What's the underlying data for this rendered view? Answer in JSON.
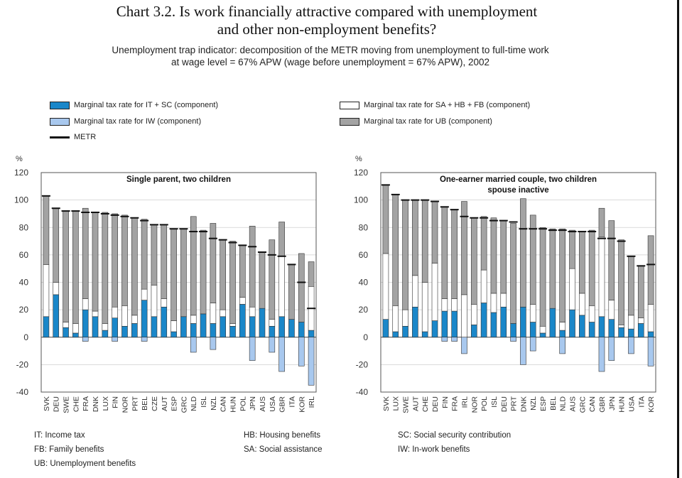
{
  "title_line1": "Chart 3.2.  Is work financially attractive compared with unemployment",
  "title_line2": "and other non-employment benefits?",
  "subtitle_line1": "Unemployment trap indicator: decomposition of the METR moving from unemployment to full-time work",
  "subtitle_line2": "at wage level = 67% APW (wage before unemployment = 67% APW), 2002",
  "colors": {
    "itsc": "#1a87c9",
    "iw": "#a8c8ee",
    "sahbfb": "#ffffff",
    "ub": "#a3a3a3",
    "metr": "#111111"
  },
  "legend": [
    {
      "key": "itsc",
      "label": "Marginal tax rate for IT + SC (component)"
    },
    {
      "key": "sahbfb",
      "label": "Marginal tax rate for SA + HB + FB (component)"
    },
    {
      "key": "iw",
      "label": "Marginal tax rate for IW (component)"
    },
    {
      "key": "ub",
      "label": "Marginal tax rate for UB (component)"
    },
    {
      "key": "metr",
      "label": "METR"
    }
  ],
  "abbreviations": [
    "IT:   Income tax",
    "HB: Housing benefits",
    "SC:  Social security contribution",
    "FB:  Family benefits",
    "SA:  Social assistance",
    "IW:  In-work benefits",
    "UB:  Unemployment benefits"
  ],
  "chart_data": [
    {
      "type": "bar",
      "title": "Single parent, two children",
      "title_line2": "",
      "ylabel": "%",
      "ylim": [
        -40,
        120
      ],
      "yticks": [
        -40,
        -20,
        0,
        20,
        40,
        60,
        80,
        100,
        120
      ],
      "categories": [
        "SVK",
        "DEU",
        "SWE",
        "CHE",
        "FRA",
        "DNK",
        "LUX",
        "FIN",
        "NOR",
        "PRT",
        "BEL",
        "CZE",
        "AUT",
        "ESP",
        "GRC",
        "NLD",
        "ISL",
        "NZL",
        "CAN",
        "HUN",
        "POL",
        "JPN",
        "AUS",
        "USA",
        "GBR",
        "ITA",
        "KOR",
        "IRL"
      ],
      "series": [
        {
          "key": "itsc",
          "values": [
            15,
            31,
            7,
            3,
            20,
            15,
            5,
            14,
            8,
            10,
            27,
            15,
            22,
            4,
            15,
            10,
            17,
            10,
            15,
            8,
            24,
            15,
            21,
            8,
            15,
            13,
            11,
            5
          ]
        },
        {
          "key": "iw",
          "values": [
            0,
            0,
            0,
            0,
            -3,
            0,
            0,
            -3,
            0,
            0,
            -3,
            0,
            0,
            0,
            0,
            -11,
            0,
            -9,
            0,
            0,
            0,
            -17,
            0,
            -11,
            -25,
            0,
            -21,
            -35
          ]
        },
        {
          "key": "sahbfb",
          "values": [
            38,
            9,
            4,
            7,
            8,
            4,
            5,
            8,
            15,
            6,
            8,
            23,
            6,
            8,
            0,
            6,
            0,
            15,
            5,
            2,
            5,
            7,
            0,
            5,
            44,
            0,
            0,
            32
          ]
        },
        {
          "key": "ub",
          "values": [
            50,
            54,
            81,
            82,
            66,
            72,
            81,
            68,
            66,
            71,
            51,
            44,
            54,
            67,
            64,
            72,
            61,
            58,
            51,
            60,
            38,
            59,
            41,
            58,
            25,
            40,
            50,
            18
          ]
        }
      ],
      "metr": [
        103,
        94,
        92,
        92,
        91,
        91,
        90,
        89,
        88,
        87,
        85,
        82,
        82,
        79,
        79,
        77,
        77,
        72,
        71,
        69,
        67,
        66,
        62,
        60,
        59,
        53,
        40,
        21
      ]
    },
    {
      "type": "bar",
      "title": "One-earner married couple, two children",
      "title_line2": "spouse inactive",
      "ylabel": "%",
      "ylim": [
        -40,
        120
      ],
      "yticks": [
        -40,
        -20,
        0,
        20,
        40,
        60,
        80,
        100,
        120
      ],
      "categories": [
        "SVK",
        "LUX",
        "SWE",
        "AUT",
        "CHE",
        "DEU",
        "FIN",
        "FRA",
        "IRL",
        "NOR",
        "POL",
        "ISL",
        "DEU",
        "PRT",
        "DNK",
        "NZL",
        "ESP",
        "BEL",
        "NLD",
        "AUS",
        "GRC",
        "CAN",
        "GBR",
        "JPN",
        "HUN",
        "USA",
        "ITA",
        "KOR"
      ],
      "series": [
        {
          "key": "itsc",
          "values": [
            13,
            4,
            8,
            22,
            4,
            12,
            19,
            19,
            0,
            9,
            25,
            18,
            22,
            10,
            22,
            11,
            3,
            21,
            5,
            20,
            16,
            11,
            15,
            13,
            7,
            6,
            10,
            4
          ]
        },
        {
          "key": "iw",
          "values": [
            0,
            0,
            0,
            0,
            0,
            0,
            -3,
            -3,
            -12,
            0,
            0,
            0,
            0,
            -3,
            -20,
            -10,
            0,
            0,
            -12,
            0,
            0,
            0,
            -25,
            -17,
            0,
            -12,
            0,
            -21
          ]
        },
        {
          "key": "sahbfb",
          "values": [
            48,
            19,
            12,
            23,
            36,
            42,
            9,
            9,
            31,
            15,
            24,
            14,
            10,
            0,
            0,
            13,
            5,
            0,
            6,
            30,
            16,
            12,
            58,
            14,
            2,
            10,
            4,
            20
          ]
        },
        {
          "key": "ub",
          "values": [
            50,
            81,
            80,
            55,
            60,
            45,
            67,
            65,
            68,
            63,
            39,
            55,
            53,
            73,
            79,
            65,
            72,
            58,
            68,
            28,
            45,
            55,
            21,
            58,
            62,
            43,
            38,
            50
          ]
        }
      ],
      "metr": [
        111,
        104,
        100,
        100,
        100,
        99,
        95,
        93,
        88,
        87,
        87,
        85,
        85,
        84,
        79,
        79,
        79,
        78,
        78,
        77,
        77,
        77,
        72,
        72,
        70,
        59,
        52,
        53
      ]
    }
  ]
}
